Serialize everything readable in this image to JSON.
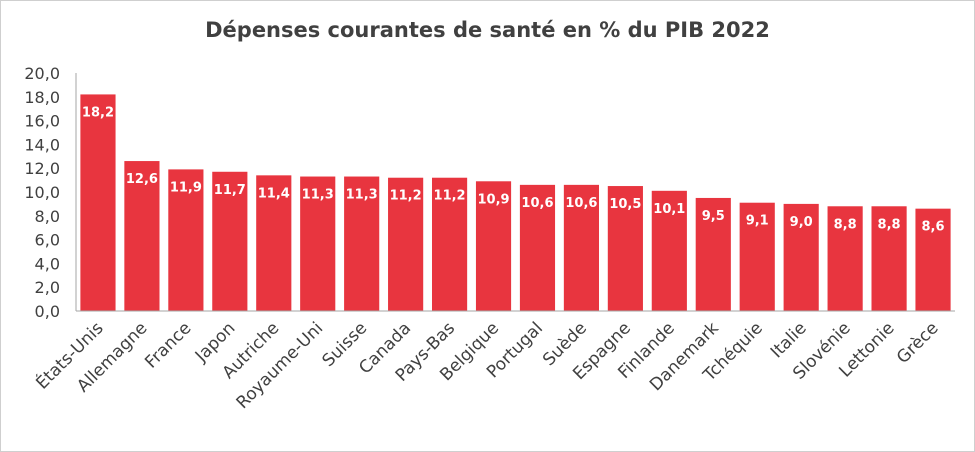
{
  "chart_data": {
    "type": "bar",
    "title": "Dépenses courantes de santé en % du PIB 2022",
    "categories": [
      "États-Unis",
      "Allemagne",
      "France",
      "Japon",
      "Autriche",
      "Royaume-Uni",
      "Suisse",
      "Canada",
      "Pays-Bas",
      "Belgique",
      "Portugal",
      "Suède",
      "Espagne",
      "Finlande",
      "Danemark",
      "Tchéquie",
      "Italie",
      "Slovénie",
      "Lettonie",
      "Grèce"
    ],
    "values": [
      18.2,
      12.6,
      11.9,
      11.7,
      11.4,
      11.3,
      11.3,
      11.2,
      11.2,
      10.9,
      10.6,
      10.6,
      10.5,
      10.1,
      9.5,
      9.1,
      9.0,
      8.8,
      8.8,
      8.6
    ],
    "data_labels": [
      "18,2",
      "12,6",
      "11,9",
      "11,7",
      "11,4",
      "11,3",
      "11,3",
      "11,2",
      "11,2",
      "10,9",
      "10,6",
      "10,6",
      "10,5",
      "10,1",
      "9,5",
      "9,1",
      "9,0",
      "8,8",
      "8,8",
      "8,6"
    ],
    "y_ticks": [
      "0,0",
      "2,0",
      "4,0",
      "6,0",
      "8,0",
      "10,0",
      "12,0",
      "14,0",
      "16,0",
      "18,0",
      "20,0"
    ],
    "ylim": [
      0,
      20
    ],
    "grid": false,
    "legend": "none",
    "bar_color": "#e8353f",
    "axis_color": "#a6a6a6",
    "text_color": "#404040"
  }
}
